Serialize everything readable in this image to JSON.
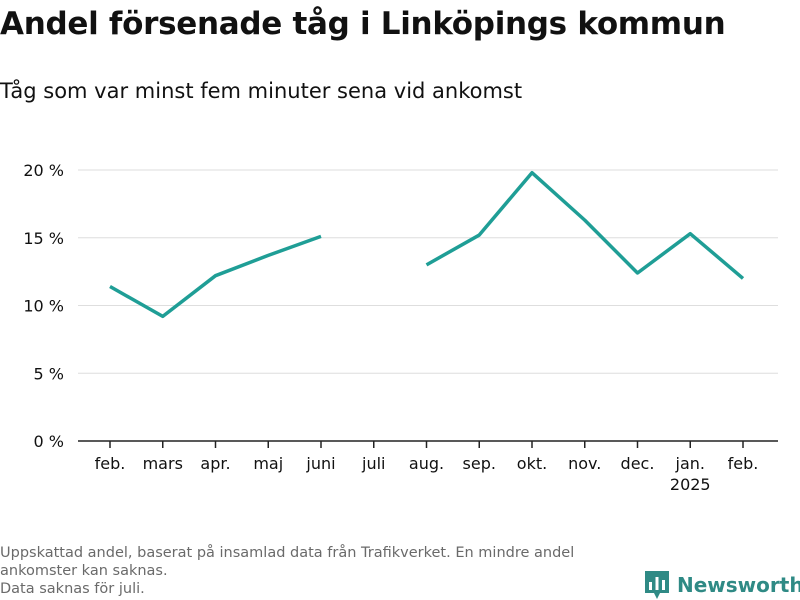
{
  "title": "Andel försenade tåg i Linköpings kommun",
  "subtitle": "Tåg som var minst fem minuter sena vid ankomst",
  "chart_data": {
    "type": "line",
    "title": "Andel försenade tåg i Linköpings kommun",
    "subtitle": "Tåg som var minst fem minuter sena vid ankomst",
    "xlabel": "",
    "ylabel": "",
    "categories": [
      "feb.",
      "mars",
      "apr.",
      "maj",
      "juni",
      "juli",
      "aug.",
      "sep.",
      "okt.",
      "nov.",
      "dec.",
      "jan.",
      "feb."
    ],
    "category_sublabels": [
      "",
      "",
      "",
      "",
      "",
      "",
      "",
      "",
      "",
      "",
      "",
      "2025",
      ""
    ],
    "series": [
      {
        "values": [
          11.4,
          9.2,
          12.2,
          13.7,
          15.1,
          null,
          13.0,
          15.2,
          19.8,
          16.3,
          12.4,
          15.3,
          12.0
        ]
      }
    ],
    "ylim": [
      0,
      20
    ],
    "yticks": [
      0,
      5,
      10,
      15,
      20
    ],
    "ytick_labels": [
      "0 %",
      "5 %",
      "10 %",
      "15 %",
      "20 %"
    ],
    "grid": true,
    "legend": "none",
    "line_color": "#1f9e96"
  },
  "footer": {
    "line1": "Uppskattad andel, baserat på insamlad data från Trafikverket. En mindre andel",
    "line2": "ankomster kan saknas.",
    "line3": "Data saknas för juli."
  },
  "brand": {
    "name": "Newsworthy",
    "icon": "bar-chart-icon",
    "color": "#2f8a85"
  }
}
